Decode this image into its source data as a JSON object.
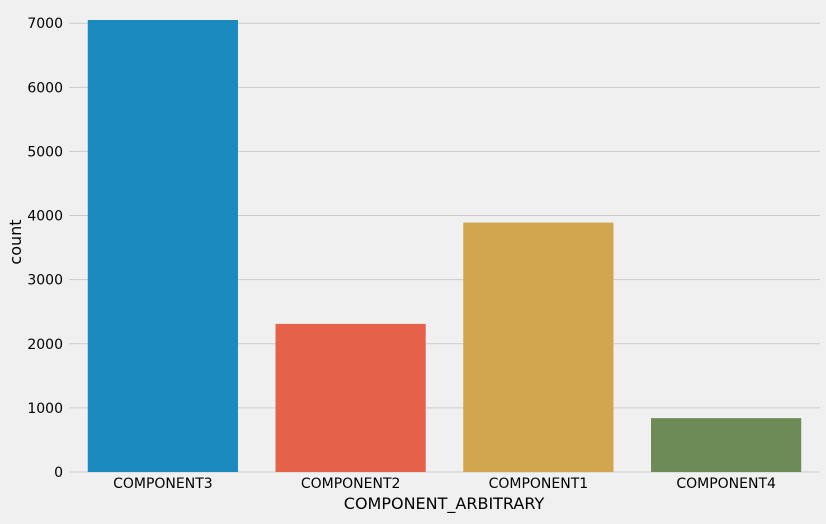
{
  "chart_data": {
    "type": "bar",
    "categories": [
      "COMPONENT3",
      "COMPONENT2",
      "COMPONENT1",
      "COMPONENT4"
    ],
    "values": [
      7050,
      2310,
      3890,
      840
    ],
    "xlabel": "COMPONENT_ARBITRARY",
    "ylabel": "count",
    "ylim": [
      0,
      7050
    ],
    "yticks": [
      0,
      1000,
      2000,
      3000,
      4000,
      5000,
      6000,
      7000
    ],
    "grid": true,
    "legend": "none",
    "colors": [
      "#1b8bbf",
      "#e5614a",
      "#d1a64e",
      "#6d8b57"
    ],
    "background": "#f0f0f0",
    "grid_color": "#cbcbcb"
  }
}
